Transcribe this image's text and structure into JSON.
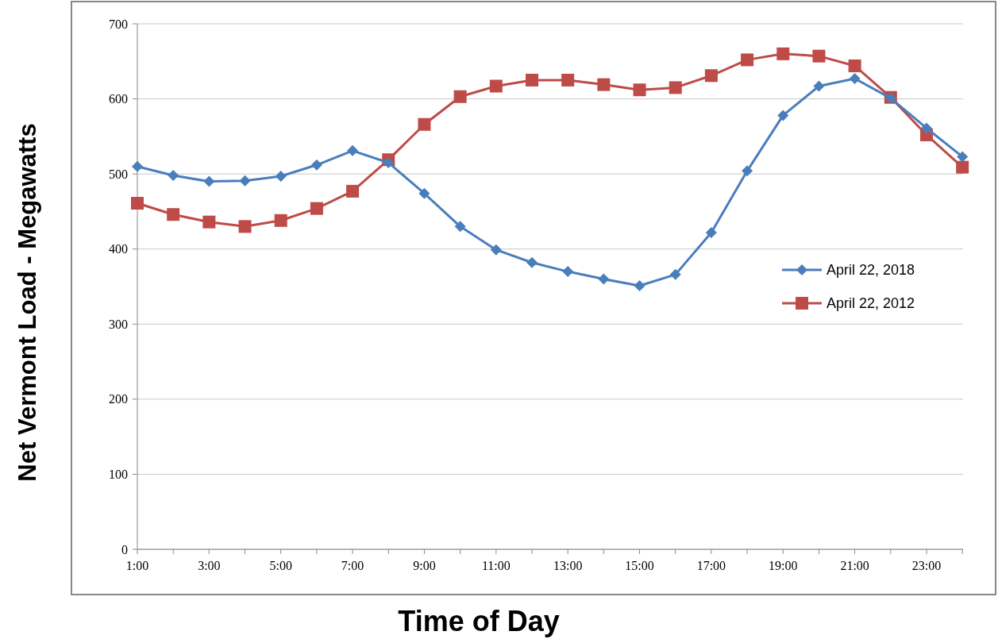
{
  "chart_data": {
    "type": "line",
    "xlabel": "Time of Day",
    "ylabel": "Net Vermont Load - Megawatts",
    "categories": [
      "1:00",
      null,
      "3:00",
      null,
      "5:00",
      null,
      "7:00",
      null,
      "9:00",
      null,
      "11:00",
      null,
      "13:00",
      null,
      "15:00",
      null,
      "17:00",
      null,
      "19:00",
      null,
      "21:00",
      null,
      "23:00",
      null
    ],
    "series": [
      {
        "name": "April 22, 2018",
        "color": "#4a7ebb",
        "marker": "diamond",
        "values": [
          510,
          498,
          490,
          491,
          497,
          512,
          531,
          515,
          474,
          430,
          399,
          382,
          370,
          360,
          351,
          366,
          422,
          504,
          578,
          617,
          627,
          601,
          561,
          523
        ]
      },
      {
        "name": "April 22, 2012",
        "color": "#be4b48",
        "marker": "square",
        "values": [
          461,
          446,
          436,
          430,
          438,
          454,
          477,
          519,
          566,
          603,
          617,
          625,
          625,
          619,
          612,
          615,
          631,
          652,
          660,
          657,
          644,
          602,
          552,
          509
        ]
      }
    ],
    "ylim": [
      0,
      700
    ],
    "yticks": [
      0,
      100,
      200,
      300,
      400,
      500,
      600,
      700
    ],
    "grid": "y",
    "legend": "right",
    "line_style": "solid"
  }
}
